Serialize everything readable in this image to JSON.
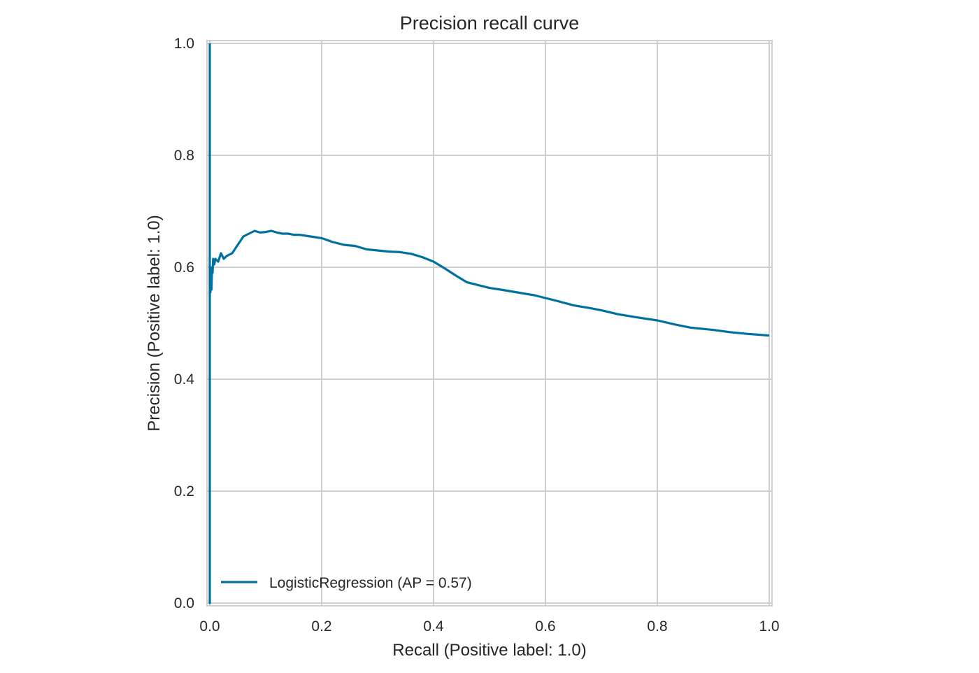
{
  "chart_data": {
    "type": "line",
    "title": "Precision recall curve",
    "xlabel": "Recall (Positive label: 1.0)",
    "ylabel": "Precision (Positive label: 1.0)",
    "xlim": [
      -0.005,
      1.005
    ],
    "ylim": [
      -0.005,
      1.005
    ],
    "xticks": [
      0.0,
      0.2,
      0.4,
      0.6,
      0.8,
      1.0
    ],
    "yticks": [
      0.0,
      0.2,
      0.4,
      0.6,
      0.8,
      1.0
    ],
    "xtick_labels": [
      "0.0",
      "0.2",
      "0.4",
      "0.6",
      "0.8",
      "1.0"
    ],
    "ytick_labels": [
      "0.0",
      "0.2",
      "0.4",
      "0.6",
      "0.8",
      "1.0"
    ],
    "grid": true,
    "legend_position": "lower-left",
    "colors": {
      "series": "#00719E",
      "grid": "#D0D0D0",
      "text": "#262626"
    },
    "series": [
      {
        "name": "LogisticRegression (AP = 0.57)",
        "x": [
          0.0,
          0.0,
          0.0,
          0.001,
          0.002,
          0.003,
          0.004,
          0.005,
          0.006,
          0.008,
          0.01,
          0.015,
          0.02,
          0.025,
          0.03,
          0.04,
          0.05,
          0.06,
          0.07,
          0.08,
          0.09,
          0.1,
          0.11,
          0.12,
          0.13,
          0.14,
          0.15,
          0.16,
          0.18,
          0.2,
          0.22,
          0.24,
          0.26,
          0.28,
          0.3,
          0.32,
          0.34,
          0.36,
          0.38,
          0.4,
          0.42,
          0.44,
          0.46,
          0.48,
          0.5,
          0.52,
          0.55,
          0.58,
          0.6,
          0.62,
          0.65,
          0.68,
          0.7,
          0.73,
          0.76,
          0.8,
          0.83,
          0.86,
          0.9,
          0.93,
          0.96,
          1.0
        ],
        "y": [
          1.0,
          0.0,
          0.6,
          0.555,
          0.58,
          0.56,
          0.6,
          0.59,
          0.615,
          0.605,
          0.615,
          0.61,
          0.625,
          0.615,
          0.62,
          0.625,
          0.64,
          0.655,
          0.66,
          0.665,
          0.662,
          0.663,
          0.665,
          0.662,
          0.66,
          0.66,
          0.658,
          0.658,
          0.655,
          0.652,
          0.645,
          0.64,
          0.638,
          0.632,
          0.63,
          0.628,
          0.627,
          0.624,
          0.618,
          0.61,
          0.598,
          0.585,
          0.573,
          0.568,
          0.563,
          0.56,
          0.555,
          0.55,
          0.545,
          0.54,
          0.532,
          0.527,
          0.523,
          0.516,
          0.511,
          0.505,
          0.498,
          0.492,
          0.488,
          0.484,
          0.481,
          0.478
        ]
      }
    ]
  }
}
